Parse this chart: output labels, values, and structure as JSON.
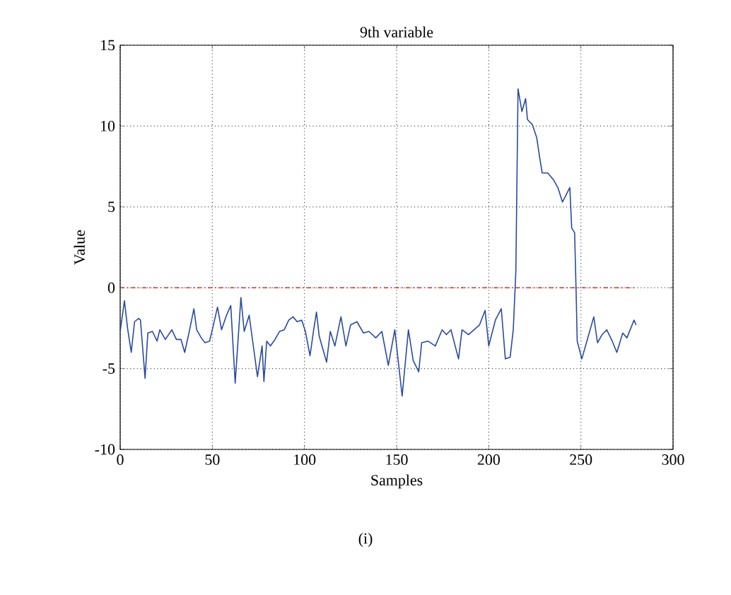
{
  "chart_data": {
    "type": "line",
    "title": "9th variable",
    "xlabel": "Samples",
    "ylabel": "Value",
    "annotations": [
      "(i)"
    ],
    "xlim": [
      0,
      300
    ],
    "ylim": [
      -10,
      15
    ],
    "xticks": [
      0,
      50,
      100,
      150,
      200,
      250,
      300
    ],
    "yticks": [
      -10,
      -5,
      0,
      5,
      10,
      15
    ],
    "grid": true,
    "ref_lines": [
      {
        "axis": "y",
        "value": 0,
        "color": "#e03030",
        "line_style": "dashdot"
      }
    ],
    "series": [
      {
        "color": "#2a4aa0",
        "x": [
          0,
          2.3,
          4,
          6,
          7.8,
          10,
          11,
          13.5,
          15,
          17.5,
          20,
          21.5,
          24.5,
          28,
          30.5,
          33,
          35,
          37.5,
          40,
          41.5,
          44,
          46,
          48.5,
          50.4,
          52.8,
          55,
          57.7,
          60,
          62.4,
          65.5,
          67.3,
          70,
          72,
          74.5,
          77,
          78,
          79.5,
          81.5,
          84,
          86.5,
          89,
          91.5,
          93.8,
          96,
          98.5,
          100.5,
          103,
          105,
          106.5,
          108,
          112,
          114,
          116.5,
          119.8,
          122.5,
          125,
          128.5,
          132,
          135,
          138.7,
          142,
          145.5,
          149,
          153,
          156.4,
          159,
          162,
          163.6,
          167,
          171,
          174.7,
          177,
          179.5,
          183.6,
          185.5,
          189,
          192,
          195,
          198,
          200,
          203.6,
          206.8,
          209,
          211.6,
          213.3,
          214.7,
          215.9,
          218,
          220,
          221,
          223.6,
          226,
          227.7,
          229,
          232,
          235,
          237.5,
          240,
          244,
          245,
          246.6,
          247.5,
          248,
          250.5,
          253,
          257,
          259,
          261.5,
          264,
          267,
          269.5,
          272.7,
          275,
          278.8,
          280
        ],
        "values": [
          -2.7,
          -0.8,
          -2.5,
          -4.0,
          -2.1,
          -1.9,
          -2.0,
          -5.6,
          -2.8,
          -2.7,
          -3.3,
          -2.6,
          -3.2,
          -2.6,
          -3.2,
          -3.2,
          -4.0,
          -2.7,
          -1.3,
          -2.6,
          -3.1,
          -3.4,
          -3.3,
          -2.4,
          -1.2,
          -2.6,
          -1.7,
          -1.1,
          -5.9,
          -0.6,
          -2.7,
          -1.7,
          -3.4,
          -5.5,
          -3.6,
          -5.8,
          -3.3,
          -3.6,
          -3.2,
          -2.7,
          -2.6,
          -2.0,
          -1.8,
          -2.1,
          -2.0,
          -2.7,
          -4.2,
          -2.6,
          -1.5,
          -3.0,
          -4.6,
          -2.7,
          -3.6,
          -1.8,
          -3.6,
          -2.3,
          -2.1,
          -2.8,
          -2.7,
          -3.1,
          -2.7,
          -4.8,
          -2.6,
          -6.7,
          -2.6,
          -4.5,
          -5.2,
          -3.4,
          -3.3,
          -3.6,
          -2.6,
          -2.9,
          -2.6,
          -4.4,
          -2.6,
          -2.9,
          -2.6,
          -2.3,
          -1.4,
          -3.6,
          -2.0,
          -1.3,
          -4.4,
          -4.3,
          -2.6,
          1.0,
          12.3,
          10.9,
          11.7,
          10.4,
          10.1,
          9.3,
          8.0,
          7.1,
          7.1,
          6.7,
          6.2,
          5.3,
          6.2,
          3.7,
          3.4,
          -0.7,
          -3.3,
          -4.4,
          -3.4,
          -1.8,
          -3.4,
          -2.9,
          -2.6,
          -3.3,
          -4.0,
          -2.8,
          -3.1,
          -2.0,
          -2.3
        ]
      }
    ]
  }
}
